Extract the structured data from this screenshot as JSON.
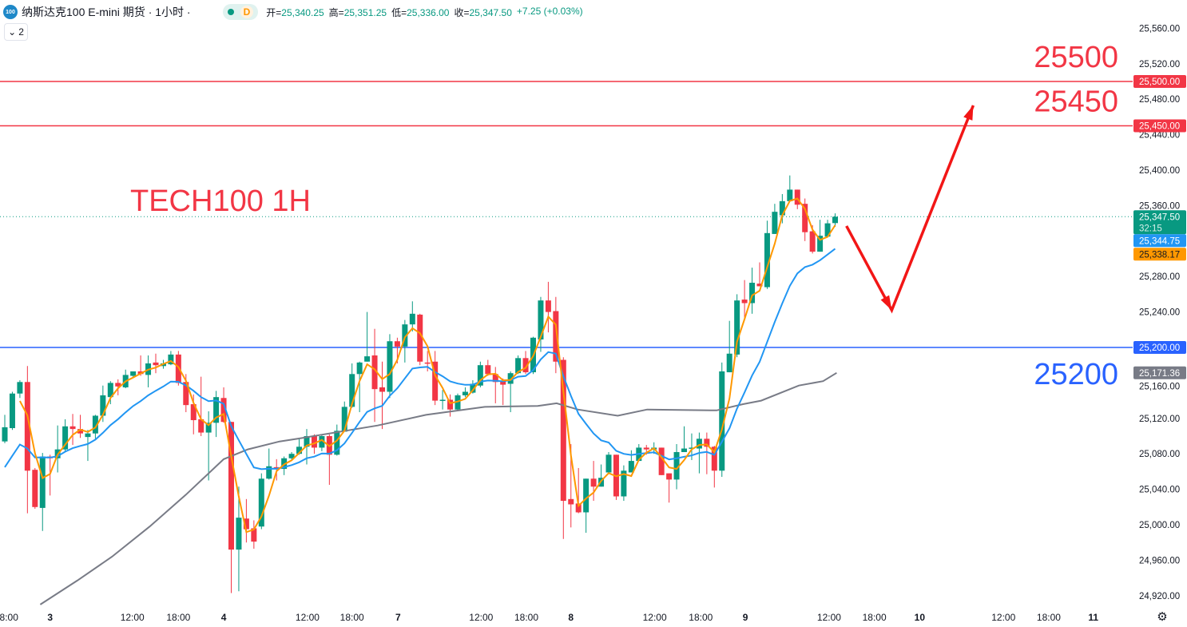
{
  "header": {
    "logo_text": "100",
    "symbol_title": "纳斯达克100 E-mini 期货 · 1小时 ·",
    "market_status_letter": "D",
    "open_label": "开=",
    "open_value": "25,340.25",
    "high_label": "高=",
    "high_value": "25,351.25",
    "low_label": "低=",
    "low_value": "25,336.00",
    "close_label": "收=",
    "close_value": "25,347.50",
    "change": "+7.25 (+0.03%)"
  },
  "indicators_toggle": {
    "icon": "chevron-down-icon",
    "count": "2"
  },
  "settings_icon": "gear-icon",
  "colors": {
    "up": "#089981",
    "down": "#f23645",
    "ma_fast": "#ff9800",
    "ma_mid": "#2196f3",
    "ma_slow": "#787b86",
    "support": "#2962ff",
    "resistance": "#f23645"
  },
  "chart_data": {
    "type": "candlestick",
    "title": "TECH100 1H",
    "ylim": [
      24900,
      25580
    ],
    "y_ticks": [
      "25,560.00",
      "25,520.00",
      "25,480.00",
      "25,440.00",
      "25,400.00",
      "25,360.00",
      "25,280.00",
      "25,240.00",
      "25,160.00",
      "25,120.00",
      "25,080.00",
      "25,040.00",
      "25,000.00",
      "24,960.00",
      "24,920.00"
    ],
    "y_tick_values": [
      25560,
      25520,
      25480,
      25440,
      25400,
      25360,
      25280,
      25240,
      25160,
      25120,
      25080,
      25040,
      25000,
      24960,
      24920
    ],
    "x_ticks": [
      {
        "label": "18:00",
        "bar": 0.2
      },
      {
        "label": "3",
        "bar": 6.0
      },
      {
        "label": "12:00",
        "bar": 16.9
      },
      {
        "label": "18:00",
        "bar": 23.0
      },
      {
        "label": "4",
        "bar": 29.0
      },
      {
        "label": "12:00",
        "bar": 40.1
      },
      {
        "label": "18:00",
        "bar": 46.0
      },
      {
        "label": "7",
        "bar": 52.1
      },
      {
        "label": "12:00",
        "bar": 63.1
      },
      {
        "label": "18:00",
        "bar": 69.1
      },
      {
        "label": "8",
        "bar": 75.0
      },
      {
        "label": "12:00",
        "bar": 86.1
      },
      {
        "label": "18:00",
        "bar": 92.2
      },
      {
        "label": "9",
        "bar": 98.1
      },
      {
        "label": "12:00",
        "bar": 109.2
      },
      {
        "label": "18:00",
        "bar": 115.2
      },
      {
        "label": "10",
        "bar": 121.2
      },
      {
        "label": "12:00",
        "bar": 132.3
      },
      {
        "label": "18:00",
        "bar": 138.3
      },
      {
        "label": "11",
        "bar": 144.2
      }
    ],
    "ohlc": [
      [
        25094,
        25124,
        25092,
        25110
      ],
      [
        25109,
        25150,
        25107,
        25148
      ],
      [
        25148,
        25163,
        25143,
        25161
      ],
      [
        25161,
        25179,
        25013,
        25061
      ],
      [
        25062,
        25064,
        25018,
        25020
      ],
      [
        25019,
        25081,
        24993,
        25077
      ],
      [
        25077,
        25079,
        25033,
        25075
      ],
      [
        25075,
        25112,
        25059,
        25085
      ],
      [
        25085,
        25119,
        25083,
        25111
      ],
      [
        25111,
        25125,
        25090,
        25108
      ],
      [
        25108,
        25124,
        25098,
        25103
      ],
      [
        25099,
        25107,
        25072,
        25103
      ],
      [
        25103,
        25124,
        25097,
        25123
      ],
      [
        25123,
        25157,
        25116,
        25146
      ],
      [
        25144,
        25162,
        25136,
        25160
      ],
      [
        25160,
        25164,
        25146,
        25156
      ],
      [
        25155,
        25175,
        25154,
        25169
      ],
      [
        25168,
        25173,
        25167,
        25173
      ],
      [
        25173,
        25191,
        25168,
        25170
      ],
      [
        25169,
        25191,
        25155,
        25182
      ],
      [
        25183,
        25193,
        25171,
        25180
      ],
      [
        25179,
        25186,
        25176,
        25182
      ],
      [
        25181,
        25196,
        25180,
        25192
      ],
      [
        25192,
        25196,
        25157,
        25160
      ],
      [
        25161,
        25170,
        25127,
        25135
      ],
      [
        25136,
        25147,
        25102,
        25118
      ],
      [
        25119,
        25167,
        25100,
        25104
      ],
      [
        25104,
        25128,
        25050,
        25115
      ],
      [
        25115,
        25151,
        25099,
        25144
      ],
      [
        25143,
        25155,
        25115,
        25116
      ],
      [
        25116,
        25116,
        24923,
        24972
      ],
      [
        24972,
        25043,
        24925,
        25008
      ],
      [
        25007,
        25029,
        24980,
        24995
      ],
      [
        24996,
        25005,
        24973,
        24981
      ],
      [
        24998,
        25058,
        24995,
        25052
      ],
      [
        25052,
        25086,
        25051,
        25066
      ],
      [
        25065,
        25074,
        25050,
        25063
      ],
      [
        25063,
        25077,
        25056,
        25075
      ],
      [
        25075,
        25082,
        25073,
        25080
      ],
      [
        25080,
        25098,
        25079,
        25088
      ],
      [
        25088,
        25108,
        25068,
        25100
      ],
      [
        25100,
        25102,
        25080,
        25087
      ],
      [
        25087,
        25102,
        25083,
        25100
      ],
      [
        25100,
        25102,
        25045,
        25079
      ],
      [
        25079,
        25113,
        25078,
        25106
      ],
      [
        25105,
        25139,
        25105,
        25133
      ],
      [
        25133,
        25182,
        25132,
        25170
      ],
      [
        25170,
        25184,
        25127,
        25183
      ],
      [
        25184,
        25240,
        25184,
        25190
      ],
      [
        25191,
        25221,
        25116,
        25153
      ],
      [
        25155,
        25184,
        25108,
        25150
      ],
      [
        25150,
        25215,
        25143,
        25207
      ],
      [
        25207,
        25211,
        25182,
        25201
      ],
      [
        25201,
        25231,
        25183,
        25226
      ],
      [
        25226,
        25252,
        25218,
        25238
      ],
      [
        25237,
        25238,
        25180,
        25184
      ],
      [
        25183,
        25196,
        25173,
        25182
      ],
      [
        25184,
        25196,
        25135,
        25140
      ],
      [
        25140,
        25152,
        25130,
        25141
      ],
      [
        25141,
        25147,
        25122,
        25130
      ],
      [
        25130,
        25148,
        25129,
        25146
      ],
      [
        25146,
        25155,
        25144,
        25150
      ],
      [
        25149,
        25163,
        25148,
        25159
      ],
      [
        25157,
        25184,
        25155,
        25180
      ],
      [
        25180,
        25186,
        25168,
        25170
      ],
      [
        25170,
        25178,
        25137,
        25161
      ],
      [
        25162,
        25165,
        25135,
        25158
      ],
      [
        25159,
        25173,
        25127,
        25171
      ],
      [
        25171,
        25191,
        25170,
        25188
      ],
      [
        25188,
        25196,
        25170,
        25172
      ],
      [
        25172,
        25212,
        25170,
        25211
      ],
      [
        25209,
        25257,
        25195,
        25253
      ],
      [
        25253,
        25274,
        25217,
        25240
      ],
      [
        25241,
        25257,
        25171,
        25184
      ],
      [
        25186,
        25189,
        24984,
        25027
      ],
      [
        25029,
        25091,
        24997,
        25023
      ],
      [
        25024,
        25064,
        25013,
        25014
      ],
      [
        25014,
        25052,
        24991,
        25052
      ],
      [
        25052,
        25072,
        25027,
        25043
      ],
      [
        25043,
        25068,
        25043,
        25053
      ],
      [
        25059,
        25082,
        25059,
        25079
      ],
      [
        25079,
        25079,
        25028,
        25032
      ],
      [
        25032,
        25067,
        25027,
        25061
      ],
      [
        25059,
        25084,
        25059,
        25072
      ],
      [
        25072,
        25091,
        25072,
        25087
      ],
      [
        25087,
        25090,
        25079,
        25085
      ],
      [
        25085,
        25093,
        25080,
        25087
      ],
      [
        25087,
        25087,
        25056,
        25056
      ],
      [
        25058,
        25058,
        25025,
        25051
      ],
      [
        25051,
        25091,
        25040,
        25082
      ],
      [
        25082,
        25111,
        25082,
        25086
      ],
      [
        25086,
        25103,
        25073,
        25087
      ],
      [
        25086,
        25104,
        25058,
        25097
      ],
      [
        25097,
        25104,
        25057,
        25088
      ],
      [
        25088,
        25089,
        25042,
        25061
      ],
      [
        25061,
        25183,
        25054,
        25173
      ],
      [
        25172,
        25230,
        25172,
        25193
      ],
      [
        25192,
        25260,
        25189,
        25253
      ],
      [
        25254,
        25276,
        25233,
        25250
      ],
      [
        25250,
        25290,
        25238,
        25273
      ],
      [
        25272,
        25296,
        25269,
        25269
      ],
      [
        25268,
        25343,
        25266,
        25329
      ],
      [
        25328,
        25362,
        25328,
        25353
      ],
      [
        25349,
        25373,
        25340,
        25365
      ],
      [
        25365,
        25394,
        25365,
        25378
      ],
      [
        25378,
        25378,
        25356,
        25361
      ],
      [
        25362,
        25368,
        25320,
        25330
      ],
      [
        25331,
        25338,
        25306,
        25308
      ],
      [
        25308,
        25344,
        25308,
        25326
      ],
      [
        25325,
        25344,
        25325,
        25340
      ],
      [
        25340.25,
        25351.25,
        25336,
        25347.5
      ]
    ],
    "ma_fast_period": 3,
    "ma_mid_period": 12,
    "ma_slow_points": [
      [
        4.7,
        24910
      ],
      [
        9.6,
        24937
      ],
      [
        14.2,
        24964
      ],
      [
        19.2,
        24998
      ],
      [
        24.0,
        25034
      ],
      [
        29.0,
        25074
      ],
      [
        32.2,
        25085
      ],
      [
        36.4,
        25094
      ],
      [
        38.8,
        25097
      ],
      [
        49.4,
        25112
      ],
      [
        55.8,
        25124
      ],
      [
        63.6,
        25133
      ],
      [
        70.6,
        25134
      ],
      [
        73.1,
        25137
      ],
      [
        75.9,
        25130
      ],
      [
        81.2,
        25123
      ],
      [
        85.1,
        25130
      ],
      [
        94.3,
        25129
      ],
      [
        97.8,
        25136
      ],
      [
        100.2,
        25140
      ],
      [
        105.2,
        25157
      ],
      [
        108.4,
        25162
      ],
      [
        110.2,
        25171.36
      ]
    ],
    "levels": [
      {
        "price": 25500,
        "label": "25500",
        "badge": "25,500.00",
        "kind": "resistance"
      },
      {
        "price": 25450,
        "label": "25450",
        "badge": "25,450.00",
        "kind": "resistance"
      },
      {
        "price": 25200,
        "label": "25200",
        "badge": "25,200.00",
        "kind": "support"
      }
    ],
    "badges": {
      "last_price": "25,347.50",
      "countdown": "32:15",
      "ma_mid": "25,344.75",
      "ma_fast": "25,338.17",
      "ma_slow": "25,171.36"
    },
    "last_price": 25347.5,
    "projection_path": [
      [
        111.5,
        25337
      ],
      [
        117.5,
        25242
      ],
      [
        128.3,
        25473
      ]
    ]
  }
}
